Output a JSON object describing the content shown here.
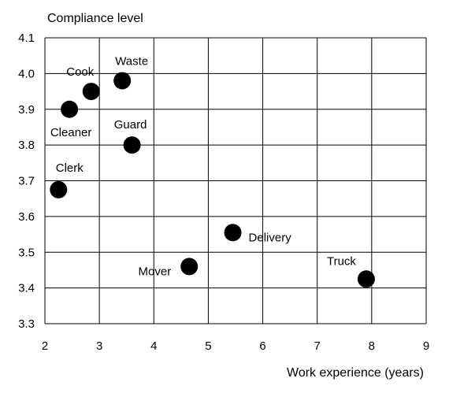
{
  "chart_data": {
    "type": "scatter",
    "title": "",
    "xlabel": "Work experience (years)",
    "ylabel": "Compliance level",
    "xlim": [
      2,
      9
    ],
    "ylim": [
      3.3,
      4.1
    ],
    "xticks": [
      "2",
      "3",
      "4",
      "5",
      "6",
      "7",
      "8",
      "9"
    ],
    "yticks": [
      "3.3",
      "3.4",
      "3.5",
      "3.6",
      "3.7",
      "3.8",
      "3.9",
      "4.0",
      "4.1"
    ],
    "grid": true,
    "marker_color": "#000000",
    "points": [
      {
        "label": "Cook",
        "x": 2.85,
        "y": 3.95
      },
      {
        "label": "Waste",
        "x": 3.42,
        "y": 3.98
      },
      {
        "label": "Cleaner",
        "x": 2.45,
        "y": 3.9
      },
      {
        "label": "Guard",
        "x": 3.6,
        "y": 3.8
      },
      {
        "label": "Clerk",
        "x": 2.25,
        "y": 3.675
      },
      {
        "label": "Delivery",
        "x": 5.45,
        "y": 3.555
      },
      {
        "label": "Mover",
        "x": 4.65,
        "y": 3.46
      },
      {
        "label": "Truck",
        "x": 7.9,
        "y": 3.425
      }
    ]
  }
}
